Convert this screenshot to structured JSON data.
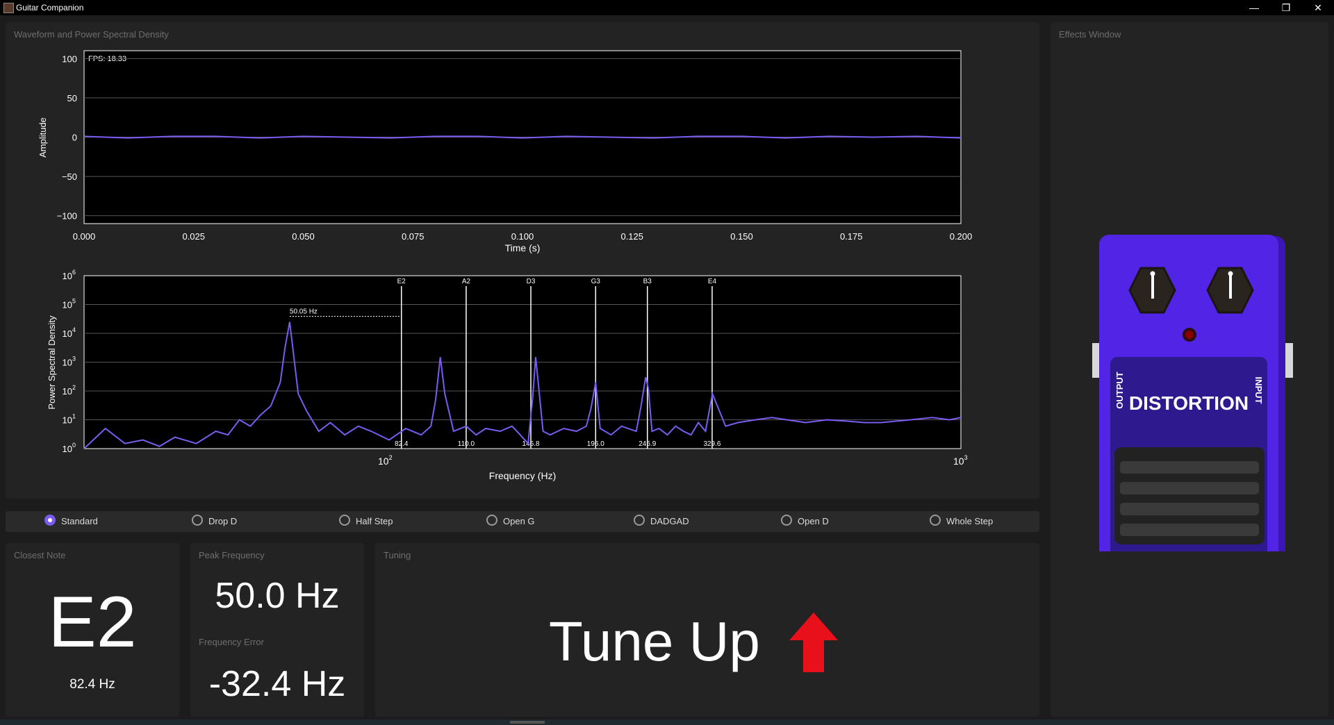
{
  "window": {
    "title": "Guitar Companion",
    "minimize": "—",
    "restore": "❐",
    "close": "✕"
  },
  "waveform_panel": {
    "title": "Waveform and Power Spectral Density",
    "fps_label": "FPS: 18.33",
    "amp_ylabel": "Amplitude",
    "amp_xlabel": "Time (s)",
    "amp_yticks": [
      "100",
      "50",
      "0",
      "−50",
      "−100"
    ],
    "amp_xticks": [
      "0.000",
      "0.025",
      "0.050",
      "0.075",
      "0.100",
      "0.125",
      "0.150",
      "0.175",
      "0.200"
    ],
    "psd_ylabel": "Power Spectral Density",
    "psd_xlabel": "Frequency (Hz)",
    "psd_xtick_1": "10",
    "psd_xtick_1_exp": "2",
    "psd_xtick_2": "10",
    "psd_xtick_2_exp": "3",
    "peak_label": "50.05 Hz"
  },
  "chart_data": [
    {
      "type": "line",
      "xlabel": "Time (s)",
      "ylabel": "Amplitude",
      "xlim": [
        0.0,
        0.2
      ],
      "ylim": [
        -110,
        110
      ],
      "series": [
        {
          "x": [
            0.0,
            0.01,
            0.02,
            0.03,
            0.04,
            0.05,
            0.06,
            0.07,
            0.08,
            0.09,
            0.1,
            0.11,
            0.12,
            0.13,
            0.14,
            0.15,
            0.16,
            0.17,
            0.18,
            0.19,
            0.2
          ],
          "values": [
            1,
            -1,
            1,
            1,
            -1,
            1,
            0,
            -1,
            1,
            1,
            -1,
            1,
            0,
            -1,
            1,
            1,
            -1,
            1,
            0,
            1,
            -1
          ]
        }
      ]
    },
    {
      "type": "line",
      "xlabel": "Frequency (Hz)",
      "ylabel": "Power Spectral Density",
      "xscale": "log",
      "yscale": "log",
      "xlim": [
        20,
        1000
      ],
      "ylim": [
        1,
        1000000
      ],
      "peak": {
        "x": 50.05,
        "y": 25000
      },
      "notes": [
        {
          "name": "E2",
          "freq": 82.4,
          "label": "82.4"
        },
        {
          "name": "A2",
          "freq": 110.0,
          "label": "110.0"
        },
        {
          "name": "D3",
          "freq": 146.8,
          "label": "146.8"
        },
        {
          "name": "G3",
          "freq": 196.0,
          "label": "196.0"
        },
        {
          "name": "B3",
          "freq": 246.9,
          "label": "246.9"
        },
        {
          "name": "E4",
          "freq": 329.6,
          "label": "329.6"
        }
      ],
      "series": [
        {
          "x": [
            20,
            22,
            24,
            26,
            28,
            30,
            33,
            36,
            38,
            40,
            42,
            44,
            46,
            48,
            49,
            50.05,
            51,
            52,
            54,
            57,
            60,
            64,
            68,
            72,
            78,
            84,
            90,
            94,
            96,
            98,
            100,
            104,
            110,
            115,
            120,
            128,
            135,
            140,
            145,
            148,
            150,
            155,
            160,
            170,
            180,
            188,
            192,
            196,
            200,
            210,
            220,
            235,
            240,
            245,
            248,
            252,
            260,
            270,
            280,
            290,
            300,
            310,
            320,
            330,
            350,
            370,
            400,
            430,
            460,
            500,
            550,
            600,
            650,
            700,
            750,
            800,
            880,
            950,
            1000
          ],
          "values": [
            1,
            5,
            1.5,
            2,
            1.2,
            2.5,
            1.5,
            4,
            3,
            10,
            6,
            15,
            30,
            200,
            3000,
            25000,
            1500,
            80,
            20,
            4,
            8,
            3,
            6,
            4,
            2,
            5,
            3,
            6,
            50,
            1500,
            80,
            4,
            6,
            3,
            5,
            4,
            6,
            3,
            1.5,
            60,
            1500,
            4,
            3,
            5,
            4,
            6,
            25,
            200,
            5,
            3,
            6,
            4,
            30,
            300,
            120,
            4,
            5,
            3,
            6,
            4,
            3,
            8,
            4,
            80,
            6,
            8,
            10,
            12,
            10,
            8,
            10,
            9,
            8,
            8,
            9,
            10,
            12,
            10,
            12
          ]
        }
      ]
    }
  ],
  "tunings": {
    "options": [
      "Standard",
      "Drop D",
      "Half Step",
      "Open G",
      "DADGAD",
      "Open D",
      "Whole Step"
    ],
    "selected": "Standard"
  },
  "closest_note": {
    "title": "Closest Note",
    "note": "E2",
    "freq": "82.4 Hz"
  },
  "peak_frequency": {
    "title": "Peak Frequency",
    "value": "50.0 Hz",
    "error_title": "Frequency Error",
    "error_value": "-32.4 Hz"
  },
  "tuning": {
    "title": "Tuning",
    "message": "Tune Up",
    "arrow_color": "#e8101a"
  },
  "effects": {
    "title": "Effects Window",
    "pedal_name": "DISTORTION",
    "output_label": "OUTPUT",
    "input_label": "INPUT"
  },
  "colors": {
    "accent": "#7b5cf0",
    "pedal_body": "#4a1ed6",
    "background": "#1c1c1c",
    "panel": "#232323"
  }
}
